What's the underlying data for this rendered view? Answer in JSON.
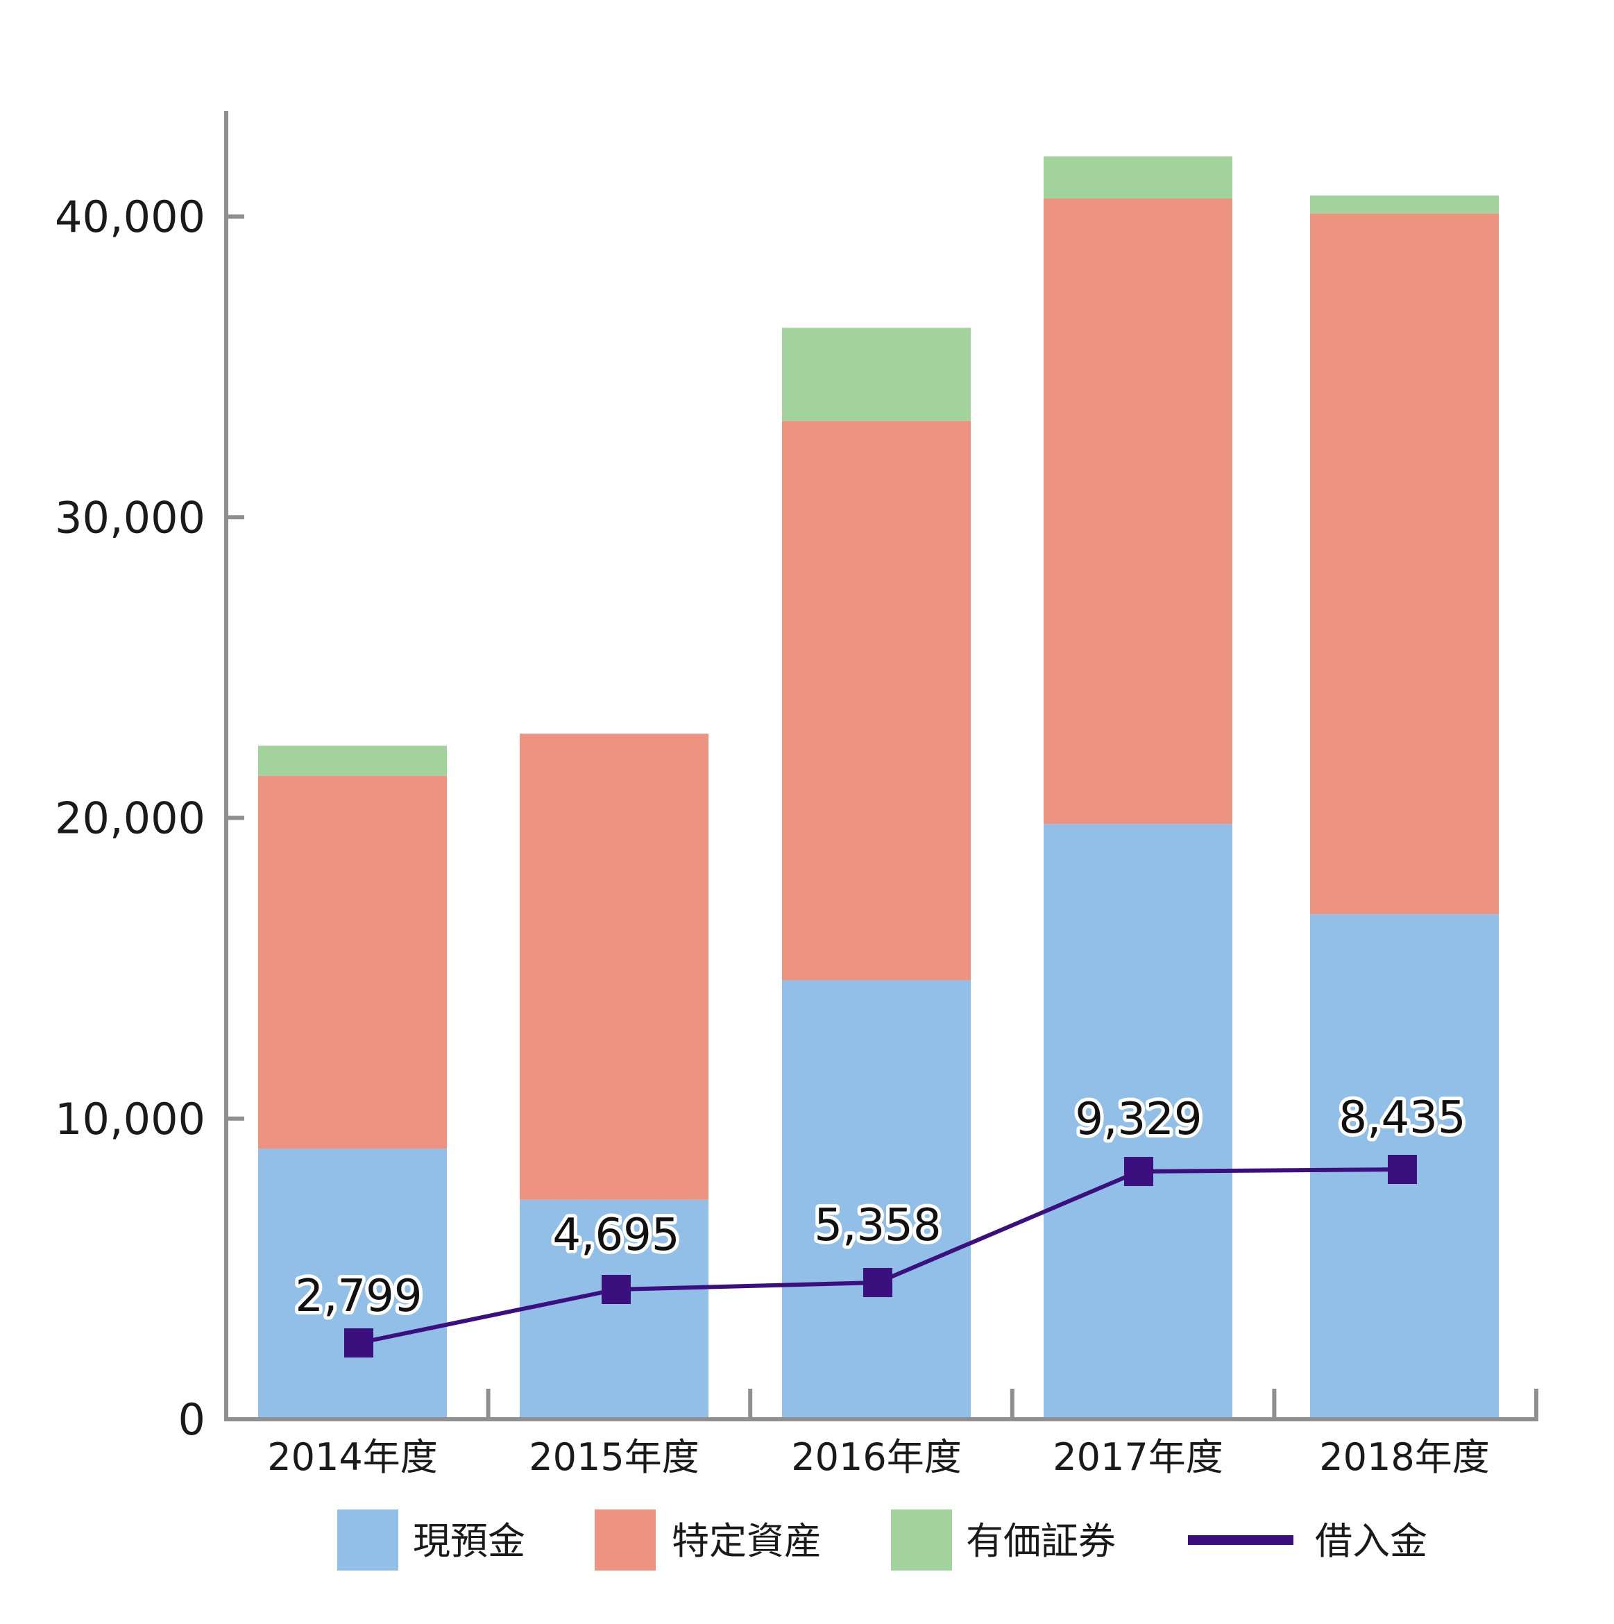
{
  "chart_data": {
    "type": "bar",
    "stacked": true,
    "categories": [
      "2014年度",
      "2015年度",
      "2016年度",
      "2017年度",
      "2018年度"
    ],
    "series": [
      {
        "name": "現預金",
        "color": "#92bfe7",
        "values": [
          9000,
          7300,
          14600,
          19800,
          16800
        ]
      },
      {
        "name": "特定資産",
        "color": "#ef9381",
        "values": [
          12400,
          15500,
          18600,
          20800,
          23300
        ]
      },
      {
        "name": "有価証券",
        "color": "#a2d39c",
        "values": [
          1000,
          0,
          3100,
          1400,
          600
        ]
      }
    ],
    "line_series": {
      "name": "借入金",
      "color": "#3b0f7e",
      "values": [
        2799,
        4695,
        5358,
        9329,
        8435
      ],
      "labels": [
        "2,799",
        "4,695",
        "5,358",
        "9,329",
        "8,435"
      ]
    },
    "ylim": [
      0,
      41000
    ],
    "yticks": [
      0,
      10000,
      20000,
      30000,
      40000
    ],
    "ytick_labels": [
      "0",
      "10,000",
      "20,000",
      "30,000",
      "40,000"
    ],
    "legend": {
      "placement": "bottom",
      "items": [
        "現預金",
        "特定資産",
        "有価証券",
        "借入金"
      ]
    },
    "grid": false,
    "title": "",
    "xlabel": "",
    "ylabel": ""
  }
}
